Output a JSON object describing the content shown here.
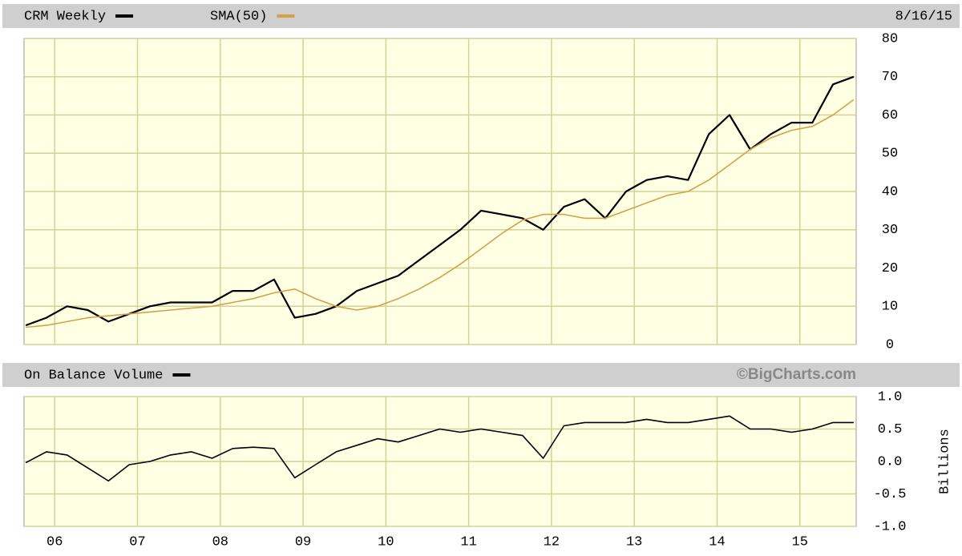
{
  "chart_data": [
    {
      "type": "line",
      "date": "8/16/15",
      "x": [
        5.65,
        5.9,
        6.15,
        6.4,
        6.65,
        6.9,
        7.15,
        7.4,
        7.65,
        7.9,
        8.15,
        8.4,
        8.65,
        8.9,
        9.15,
        9.4,
        9.65,
        9.9,
        10.15,
        10.4,
        10.65,
        10.9,
        11.15,
        11.4,
        11.65,
        11.9,
        12.15,
        12.4,
        12.65,
        12.9,
        13.15,
        13.4,
        13.65,
        13.9,
        14.15,
        14.4,
        14.65,
        14.9,
        15.15,
        15.4,
        15.65
      ],
      "series": [
        {
          "name": "CRM Weekly",
          "color": "#000000",
          "values": [
            5,
            7,
            10,
            9,
            6,
            8,
            10,
            11,
            11,
            11,
            14,
            14,
            17,
            7,
            8,
            10,
            14,
            16,
            18,
            22,
            26,
            30,
            35,
            34,
            33,
            30,
            36,
            38,
            33,
            40,
            43,
            44,
            43,
            55,
            60,
            51,
            55,
            58,
            58,
            68,
            70
          ]
        },
        {
          "name": "SMA(50)",
          "color": "#d4a14a",
          "values": [
            4.5,
            5,
            6,
            7,
            7.5,
            8,
            8.5,
            9,
            9.5,
            10,
            11,
            12,
            13.5,
            14.5,
            12,
            10,
            9,
            10,
            12,
            14.5,
            17.5,
            21,
            25,
            29,
            32.5,
            34,
            34,
            33,
            33,
            35,
            37,
            39,
            40,
            43,
            47,
            51,
            54,
            56,
            57,
            60,
            64
          ]
        }
      ],
      "xlim": [
        5.63,
        15.68
      ],
      "ylim": [
        0,
        80
      ],
      "yticks": [
        0,
        10,
        20,
        30,
        40,
        50,
        60,
        70,
        80
      ],
      "grid": true
    },
    {
      "type": "line",
      "annotation": "©BigCharts.com",
      "y_label": "Billions",
      "x": [
        5.65,
        5.9,
        6.15,
        6.4,
        6.65,
        6.9,
        7.15,
        7.4,
        7.65,
        7.9,
        8.15,
        8.4,
        8.65,
        8.9,
        9.15,
        9.4,
        9.65,
        9.9,
        10.15,
        10.4,
        10.65,
        10.9,
        11.15,
        11.4,
        11.65,
        11.9,
        12.15,
        12.4,
        12.65,
        12.9,
        13.15,
        13.4,
        13.65,
        13.9,
        14.15,
        14.4,
        14.65,
        14.9,
        15.15,
        15.4,
        15.65
      ],
      "series": [
        {
          "name": "On Balance Volume",
          "color": "#000000",
          "values": [
            -0.02,
            0.15,
            0.1,
            -0.1,
            -0.3,
            -0.05,
            0,
            0.1,
            0.15,
            0.05,
            0.2,
            0.22,
            0.2,
            -0.25,
            -0.05,
            0.15,
            0.25,
            0.35,
            0.3,
            0.4,
            0.5,
            0.45,
            0.5,
            0.45,
            0.4,
            0.05,
            0.55,
            0.6,
            0.6,
            0.6,
            0.65,
            0.6,
            0.6,
            0.65,
            0.7,
            0.5,
            0.5,
            0.45,
            0.5,
            0.6,
            0.6
          ]
        }
      ],
      "xlim": [
        5.63,
        15.68
      ],
      "xticks": [
        {
          "value": 6,
          "label": "06"
        },
        {
          "value": 7,
          "label": "07"
        },
        {
          "value": 8,
          "label": "08"
        },
        {
          "value": 9,
          "label": "09"
        },
        10,
        11,
        12,
        13,
        14,
        15
      ],
      "ylim": [
        -1,
        1
      ],
      "yticks": [
        {
          "value": -1,
          "label": "-1.0"
        },
        -0.5,
        {
          "value": 0,
          "label": "0.0"
        },
        0.5,
        {
          "value": 1,
          "label": "1.0"
        }
      ],
      "grid": true
    }
  ]
}
